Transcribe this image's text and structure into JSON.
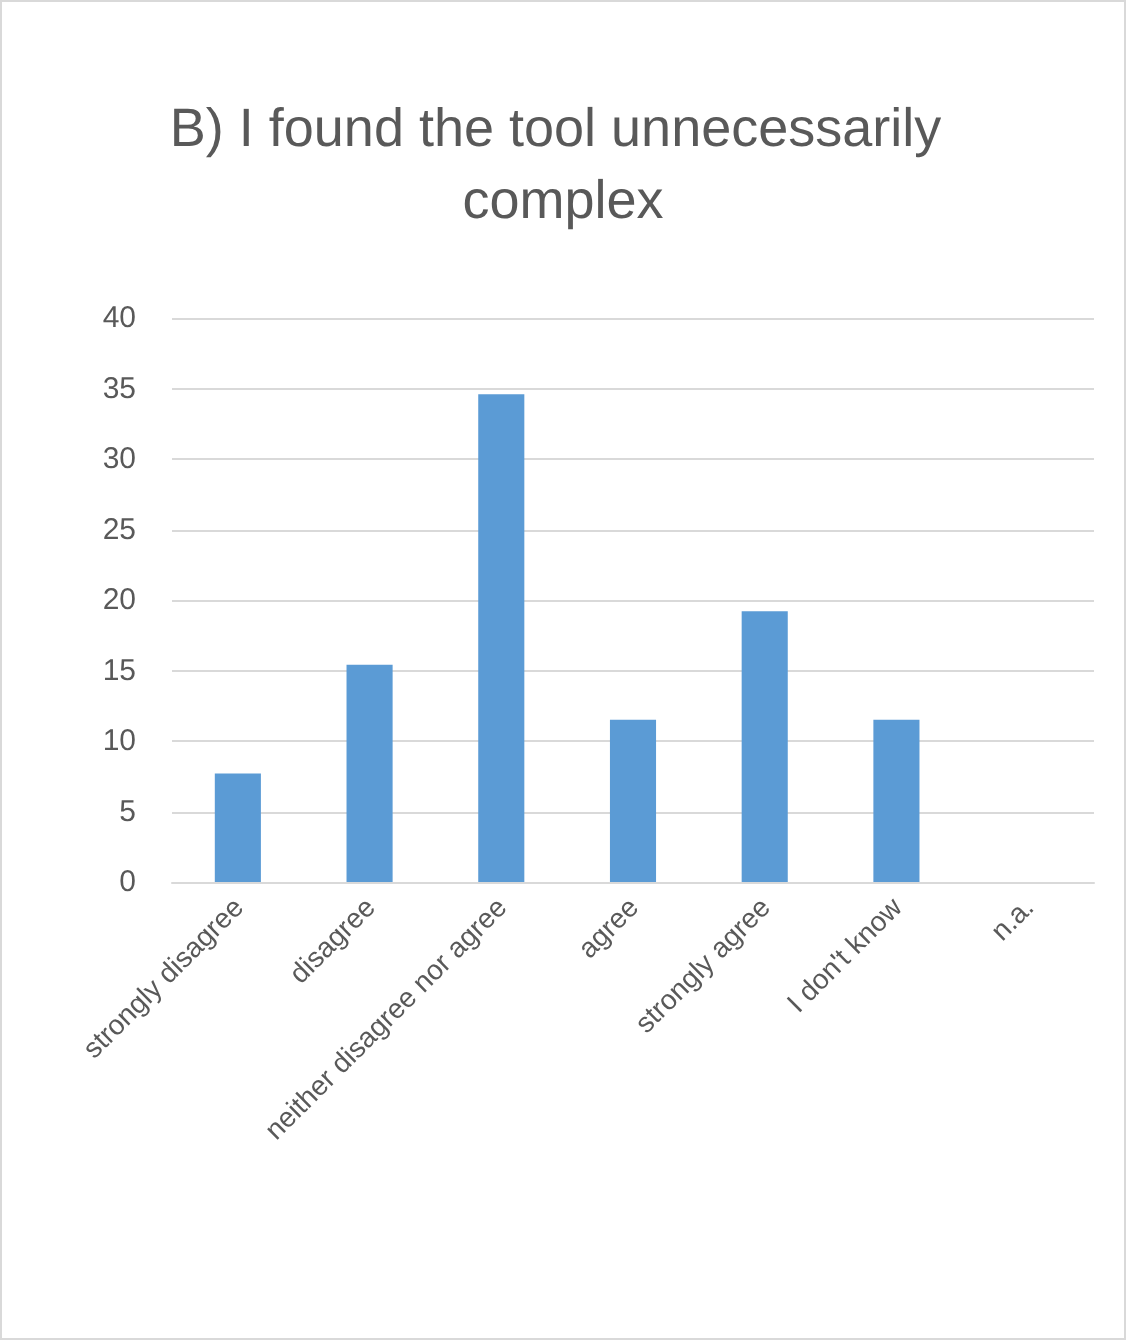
{
  "chart_data": {
    "type": "bar",
    "title": "B) I found the tool unnecessarily complex",
    "categories": [
      "strongly disagree",
      "disagree",
      "neither disagree nor agree",
      "agree",
      "strongly agree",
      "I don't know",
      "n.a."
    ],
    "values": [
      7.7,
      15.4,
      34.6,
      11.5,
      19.2,
      11.5,
      0
    ],
    "color": "#5b9bd5",
    "ylim": [
      0,
      40
    ],
    "yticks": [
      0,
      5,
      10,
      15,
      20,
      25,
      30,
      35,
      40
    ],
    "grid": "y"
  }
}
